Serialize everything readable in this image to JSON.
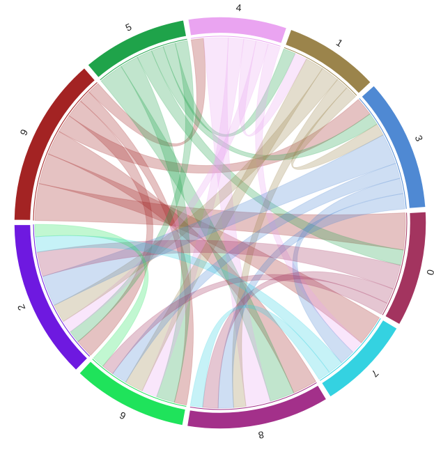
{
  "chart_data": {
    "type": "chord",
    "groups": [
      {
        "name": "4",
        "color": "#eaa4f1"
      },
      {
        "name": "1",
        "color": "#9b844b"
      },
      {
        "name": "3",
        "color": "#4f89d3"
      },
      {
        "name": "0",
        "color": "#a3345f"
      },
      {
        "name": "7",
        "color": "#34d2e1"
      },
      {
        "name": "8",
        "color": "#a3308a"
      },
      {
        "name": "6",
        "color": "#1fe35b"
      },
      {
        "name": "2",
        "color": "#6e19e0"
      },
      {
        "name": "9",
        "color": "#a32323"
      },
      {
        "name": "5",
        "color": "#1fa34a"
      }
    ],
    "chords": [
      {
        "source": "9",
        "target": "0",
        "value": 12
      },
      {
        "source": "9",
        "target": "7",
        "value": 10
      },
      {
        "source": "9",
        "target": "8",
        "value": 8
      },
      {
        "source": "9",
        "target": "3",
        "value": 6
      },
      {
        "source": "9",
        "target": "2",
        "value": 6
      },
      {
        "source": "9",
        "target": "6",
        "value": 4
      },
      {
        "source": "9",
        "target": "4",
        "value": 4
      },
      {
        "source": "5",
        "target": "8",
        "value": 8
      },
      {
        "source": "5",
        "target": "6",
        "value": 6
      },
      {
        "source": "5",
        "target": "0",
        "value": 5
      },
      {
        "source": "5",
        "target": "3",
        "value": 4
      },
      {
        "source": "5",
        "target": "1",
        "value": 4
      },
      {
        "source": "5",
        "target": "2",
        "value": 4
      },
      {
        "source": "4",
        "target": "8",
        "value": 8
      },
      {
        "source": "4",
        "target": "6",
        "value": 5
      },
      {
        "source": "4",
        "target": "1",
        "value": 4
      },
      {
        "source": "4",
        "target": "2",
        "value": 4
      },
      {
        "source": "4",
        "target": "7",
        "value": 4
      },
      {
        "source": "1",
        "target": "6",
        "value": 6
      },
      {
        "source": "1",
        "target": "2",
        "value": 6
      },
      {
        "source": "1",
        "target": "8",
        "value": 4
      },
      {
        "source": "1",
        "target": "3",
        "value": 4
      },
      {
        "source": "3",
        "target": "2",
        "value": 10
      },
      {
        "source": "3",
        "target": "6",
        "value": 5
      },
      {
        "source": "3",
        "target": "7",
        "value": 5
      },
      {
        "source": "3",
        "target": "8",
        "value": 5
      },
      {
        "source": "0",
        "target": "2",
        "value": 8
      },
      {
        "source": "0",
        "target": "8",
        "value": 5
      },
      {
        "source": "0",
        "target": "6",
        "value": 4
      },
      {
        "source": "7",
        "target": "2",
        "value": 5
      },
      {
        "source": "7",
        "target": "8",
        "value": 4
      },
      {
        "source": "6",
        "target": "2",
        "value": 4
      }
    ]
  }
}
